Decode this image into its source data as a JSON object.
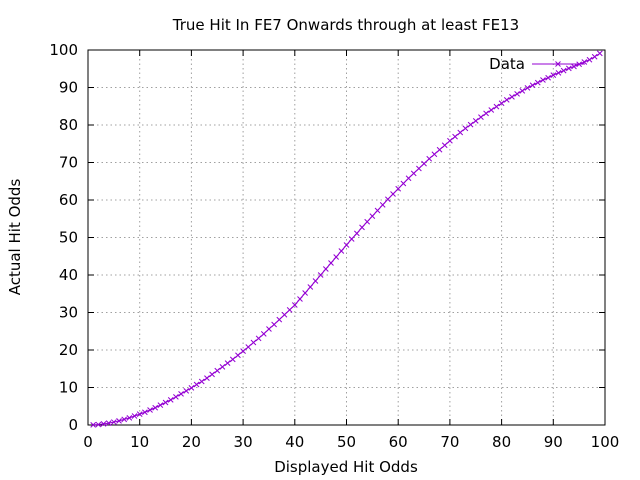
{
  "chart_data": {
    "type": "line",
    "title": "True Hit In FE7 Onwards through at least FE13",
    "xlabel": "Displayed Hit Odds",
    "ylabel": "Actual Hit Odds",
    "xlim": [
      0,
      100
    ],
    "ylim": [
      0,
      100
    ],
    "x_ticks": [
      0,
      10,
      20,
      30,
      40,
      50,
      60,
      70,
      80,
      90,
      100
    ],
    "y_ticks": [
      0,
      10,
      20,
      30,
      40,
      50,
      60,
      70,
      80,
      90,
      100
    ],
    "grid": true,
    "legend_position": "top-right",
    "marker": "x",
    "series_color": "#9400d3",
    "series": [
      {
        "name": "Data",
        "x": [
          1,
          2,
          3,
          4,
          5,
          6,
          7,
          8,
          9,
          10,
          11,
          12,
          13,
          14,
          15,
          16,
          17,
          18,
          19,
          20,
          21,
          22,
          23,
          24,
          25,
          26,
          27,
          28,
          29,
          30,
          31,
          32,
          33,
          34,
          35,
          36,
          37,
          38,
          39,
          40,
          41,
          42,
          43,
          44,
          45,
          46,
          47,
          48,
          49,
          50,
          51,
          52,
          53,
          54,
          55,
          56,
          57,
          58,
          59,
          60,
          61,
          62,
          63,
          64,
          65,
          66,
          67,
          68,
          69,
          70,
          71,
          72,
          73,
          74,
          75,
          76,
          77,
          78,
          79,
          80,
          81,
          82,
          83,
          84,
          85,
          86,
          87,
          88,
          89,
          90,
          91,
          92,
          93,
          94,
          95,
          96,
          97,
          98,
          99
        ],
        "values": [
          0.03,
          0.12,
          0.3,
          0.5,
          0.78,
          1.1,
          1.5,
          1.9,
          2.4,
          2.9,
          3.4,
          4.0,
          4.6,
          5.3,
          6.0,
          6.7,
          7.5,
          8.3,
          9.1,
          9.9,
          10.8,
          11.6,
          12.5,
          13.5,
          14.5,
          15.5,
          16.5,
          17.5,
          18.6,
          19.7,
          20.8,
          22.0,
          23.1,
          24.3,
          25.6,
          26.8,
          28.1,
          29.4,
          30.7,
          32.0,
          33.6,
          35.2,
          36.8,
          38.4,
          40.0,
          41.6,
          43.2,
          44.8,
          46.4,
          48.0,
          49.6,
          51.1,
          52.7,
          54.2,
          55.7,
          57.2,
          58.7,
          60.2,
          61.6,
          63.0,
          64.4,
          65.8,
          67.1,
          68.4,
          69.7,
          71.0,
          72.2,
          73.4,
          74.6,
          75.8,
          76.9,
          78.0,
          79.1,
          80.1,
          81.1,
          82.1,
          83.1,
          84.0,
          84.9,
          85.8,
          86.7,
          87.5,
          88.3,
          89.1,
          89.9,
          90.6,
          91.3,
          92.0,
          92.6,
          93.3,
          93.9,
          94.5,
          95.1,
          95.6,
          96.2,
          96.8,
          97.4,
          98.2,
          99.1
        ]
      }
    ]
  }
}
